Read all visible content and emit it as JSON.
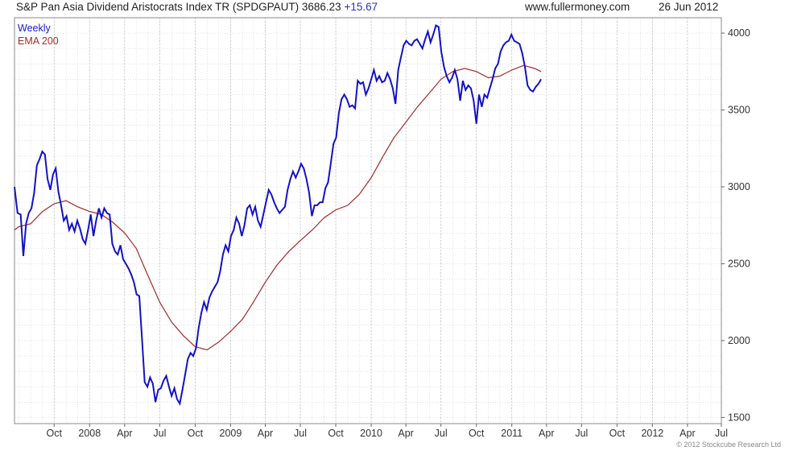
{
  "header": {
    "title": "S&P Pan Asia Dividend Aristocrats Index TR (SPDGPAUT) 3686.23",
    "change": "+15.67",
    "site": "www.fullermoney.com",
    "date": "26 Jun 2012"
  },
  "legend": {
    "weekly": "Weekly",
    "ema": "EMA 200"
  },
  "copyright": "© 2012 Stockcube Research Ltd",
  "colors": {
    "weekly": "#1212c8",
    "ema": "#a52a2a",
    "grid": "#c6c6c6",
    "frame": "#888888"
  },
  "chart_data": {
    "type": "line",
    "title": "S&P Pan Asia Dividend Aristocrats Index TR (SPDGPAUT) 3686.23",
    "x_tick_labels": [
      "Oct",
      "2008",
      "Apr",
      "Jul",
      "Oct",
      "2009",
      "Apr",
      "Jul",
      "Oct",
      "2010",
      "Apr",
      "Jul",
      "Oct",
      "2011",
      "Apr",
      "Jul",
      "Oct",
      "2012",
      "Apr",
      "Jul"
    ],
    "y_ticks": [
      1500,
      2000,
      2500,
      3000,
      3500,
      4000
    ],
    "ylim": [
      1460,
      4100
    ],
    "xlim": [
      "2007-06-20",
      "2012-06-28"
    ],
    "grid": true,
    "legend_position": "top-left",
    "series": [
      {
        "name": "Weekly",
        "points": [
          [
            "2007-06-20",
            3000
          ],
          [
            "2007-06-28",
            2830
          ],
          [
            "2007-07-06",
            2820
          ],
          [
            "2007-07-13",
            2550
          ],
          [
            "2007-07-20",
            2760
          ],
          [
            "2007-07-27",
            2830
          ],
          [
            "2007-08-03",
            2860
          ],
          [
            "2007-08-10",
            2960
          ],
          [
            "2007-08-17",
            3140
          ],
          [
            "2007-08-24",
            3180
          ],
          [
            "2007-08-31",
            3230
          ],
          [
            "2007-09-07",
            3210
          ],
          [
            "2007-09-14",
            3050
          ],
          [
            "2007-09-21",
            2980
          ],
          [
            "2007-09-28",
            3080
          ],
          [
            "2007-10-05",
            3120
          ],
          [
            "2007-10-12",
            2970
          ],
          [
            "2007-10-19",
            2880
          ],
          [
            "2007-10-26",
            2780
          ],
          [
            "2007-11-02",
            2810
          ],
          [
            "2007-11-09",
            2720
          ],
          [
            "2007-11-16",
            2760
          ],
          [
            "2007-11-23",
            2710
          ],
          [
            "2007-11-30",
            2780
          ],
          [
            "2007-12-07",
            2730
          ],
          [
            "2007-12-14",
            2660
          ],
          [
            "2007-12-21",
            2630
          ],
          [
            "2007-12-28",
            2720
          ],
          [
            "2008-01-04",
            2820
          ],
          [
            "2008-01-11",
            2680
          ],
          [
            "2008-01-18",
            2780
          ],
          [
            "2008-01-25",
            2860
          ],
          [
            "2008-02-01",
            2800
          ],
          [
            "2008-02-08",
            2860
          ],
          [
            "2008-02-15",
            2830
          ],
          [
            "2008-02-22",
            2820
          ],
          [
            "2008-02-29",
            2630
          ],
          [
            "2008-03-07",
            2580
          ],
          [
            "2008-03-14",
            2560
          ],
          [
            "2008-03-21",
            2620
          ],
          [
            "2008-03-28",
            2530
          ],
          [
            "2008-04-04",
            2500
          ],
          [
            "2008-04-11",
            2470
          ],
          [
            "2008-04-18",
            2430
          ],
          [
            "2008-04-25",
            2380
          ],
          [
            "2008-05-02",
            2300
          ],
          [
            "2008-05-09",
            2290
          ],
          [
            "2008-05-16",
            2010
          ],
          [
            "2008-05-23",
            1730
          ],
          [
            "2008-05-30",
            1700
          ],
          [
            "2008-06-06",
            1760
          ],
          [
            "2008-06-13",
            1720
          ],
          [
            "2008-06-20",
            1600
          ],
          [
            "2008-06-27",
            1680
          ],
          [
            "2008-07-04",
            1690
          ],
          [
            "2008-07-11",
            1740
          ],
          [
            "2008-07-18",
            1770
          ],
          [
            "2008-07-25",
            1700
          ],
          [
            "2008-08-01",
            1640
          ],
          [
            "2008-08-08",
            1690
          ],
          [
            "2008-08-15",
            1620
          ],
          [
            "2008-08-22",
            1590
          ],
          [
            "2008-08-29",
            1680
          ],
          [
            "2008-09-05",
            1780
          ],
          [
            "2008-09-12",
            1880
          ],
          [
            "2008-09-19",
            1920
          ],
          [
            "2008-09-26",
            1900
          ],
          [
            "2008-10-03",
            1950
          ],
          [
            "2008-10-10",
            2080
          ],
          [
            "2008-10-17",
            2180
          ],
          [
            "2008-10-24",
            2250
          ],
          [
            "2008-10-31",
            2200
          ],
          [
            "2008-11-07",
            2280
          ],
          [
            "2008-11-14",
            2320
          ],
          [
            "2008-11-21",
            2350
          ],
          [
            "2008-11-28",
            2380
          ],
          [
            "2008-12-05",
            2450
          ],
          [
            "2008-12-12",
            2560
          ],
          [
            "2008-12-19",
            2620
          ],
          [
            "2008-12-26",
            2580
          ],
          [
            "2009-01-02",
            2680
          ],
          [
            "2009-01-09",
            2720
          ],
          [
            "2009-01-16",
            2800
          ],
          [
            "2009-01-23",
            2760
          ],
          [
            "2009-01-30",
            2680
          ],
          [
            "2009-02-06",
            2750
          ],
          [
            "2009-02-13",
            2860
          ],
          [
            "2009-02-20",
            2880
          ],
          [
            "2009-02-27",
            2820
          ],
          [
            "2009-03-06",
            2870
          ],
          [
            "2009-03-13",
            2780
          ],
          [
            "2009-03-20",
            2740
          ],
          [
            "2009-03-27",
            2820
          ],
          [
            "2009-04-03",
            2900
          ],
          [
            "2009-04-10",
            2980
          ],
          [
            "2009-04-17",
            2950
          ],
          [
            "2009-04-24",
            2900
          ],
          [
            "2009-05-01",
            2860
          ],
          [
            "2009-05-08",
            2830
          ],
          [
            "2009-05-15",
            2850
          ],
          [
            "2009-05-22",
            2870
          ],
          [
            "2009-05-29",
            2980
          ],
          [
            "2009-06-05",
            3050
          ],
          [
            "2009-06-12",
            3100
          ],
          [
            "2009-06-19",
            3060
          ],
          [
            "2009-06-26",
            3100
          ],
          [
            "2009-07-03",
            3150
          ],
          [
            "2009-07-10",
            3120
          ],
          [
            "2009-07-17",
            3050
          ],
          [
            "2009-07-24",
            2960
          ],
          [
            "2009-07-31",
            2810
          ],
          [
            "2009-08-07",
            2880
          ],
          [
            "2009-08-14",
            2880
          ],
          [
            "2009-08-21",
            2900
          ],
          [
            "2009-08-28",
            2900
          ],
          [
            "2009-09-04",
            2990
          ],
          [
            "2009-09-11",
            3030
          ],
          [
            "2009-09-18",
            3150
          ],
          [
            "2009-09-25",
            3280
          ],
          [
            "2009-10-02",
            3320
          ],
          [
            "2009-10-09",
            3480
          ],
          [
            "2009-10-16",
            3570
          ],
          [
            "2009-10-23",
            3600
          ],
          [
            "2009-10-30",
            3570
          ],
          [
            "2009-11-06",
            3520
          ],
          [
            "2009-11-13",
            3530
          ],
          [
            "2009-11-20",
            3510
          ],
          [
            "2009-11-27",
            3690
          ],
          [
            "2009-12-04",
            3670
          ],
          [
            "2009-12-11",
            3680
          ],
          [
            "2009-12-18",
            3600
          ],
          [
            "2009-12-25",
            3640
          ],
          [
            "2010-01-01",
            3700
          ],
          [
            "2010-01-08",
            3760
          ],
          [
            "2010-01-15",
            3690
          ],
          [
            "2010-01-22",
            3720
          ],
          [
            "2010-01-29",
            3680
          ],
          [
            "2010-02-05",
            3690
          ],
          [
            "2010-02-12",
            3740
          ],
          [
            "2010-02-19",
            3700
          ],
          [
            "2010-02-26",
            3640
          ],
          [
            "2010-03-05",
            3540
          ],
          [
            "2010-03-12",
            3760
          ],
          [
            "2010-03-19",
            3840
          ],
          [
            "2010-03-26",
            3920
          ],
          [
            "2010-04-02",
            3950
          ],
          [
            "2010-04-09",
            3930
          ],
          [
            "2010-04-16",
            3920
          ],
          [
            "2010-04-23",
            3950
          ],
          [
            "2010-04-30",
            3960
          ],
          [
            "2010-05-07",
            3930
          ],
          [
            "2010-05-14",
            3900
          ],
          [
            "2010-05-21",
            3960
          ],
          [
            "2010-05-28",
            4010
          ],
          [
            "2010-06-04",
            3940
          ],
          [
            "2010-06-11",
            3990
          ],
          [
            "2010-06-18",
            4050
          ],
          [
            "2010-06-25",
            4040
          ],
          [
            "2010-07-02",
            3880
          ],
          [
            "2010-07-09",
            3780
          ],
          [
            "2010-07-16",
            3720
          ],
          [
            "2010-07-23",
            3680
          ],
          [
            "2010-07-30",
            3710
          ],
          [
            "2010-08-06",
            3760
          ],
          [
            "2010-08-13",
            3700
          ],
          [
            "2010-08-20",
            3560
          ],
          [
            "2010-08-27",
            3690
          ],
          [
            "2010-09-03",
            3630
          ],
          [
            "2010-09-10",
            3660
          ],
          [
            "2010-09-17",
            3640
          ],
          [
            "2010-09-24",
            3560
          ],
          [
            "2010-10-01",
            3410
          ],
          [
            "2010-10-08",
            3600
          ],
          [
            "2010-10-15",
            3520
          ],
          [
            "2010-10-22",
            3600
          ],
          [
            "2010-10-29",
            3580
          ],
          [
            "2010-11-05",
            3640
          ],
          [
            "2010-11-12",
            3700
          ],
          [
            "2010-11-19",
            3770
          ],
          [
            "2010-11-26",
            3800
          ],
          [
            "2010-12-03",
            3880
          ],
          [
            "2010-12-10",
            3920
          ],
          [
            "2010-12-17",
            3940
          ],
          [
            "2010-12-24",
            3950
          ],
          [
            "2010-12-31",
            3990
          ],
          [
            "2011-01-07",
            3950
          ],
          [
            "2011-01-14",
            3940
          ],
          [
            "2011-01-21",
            3930
          ],
          [
            "2011-01-28",
            3870
          ],
          [
            "2011-02-04",
            3780
          ],
          [
            "2011-02-11",
            3660
          ],
          [
            "2011-02-18",
            3630
          ],
          [
            "2011-02-25",
            3620
          ],
          [
            "2011-03-04",
            3650
          ],
          [
            "2011-03-11",
            3670
          ],
          [
            "2011-03-18",
            3700
          ]
        ]
      },
      {
        "name": "EMA 200",
        "points": [
          [
            "2007-06-20",
            2720
          ],
          [
            "2007-07-01",
            2740
          ],
          [
            "2007-08-01",
            2760
          ],
          [
            "2007-09-01",
            2840
          ],
          [
            "2007-10-01",
            2890
          ],
          [
            "2007-11-01",
            2910
          ],
          [
            "2007-12-01",
            2870
          ],
          [
            "2008-01-01",
            2840
          ],
          [
            "2008-02-01",
            2820
          ],
          [
            "2008-03-01",
            2770
          ],
          [
            "2008-04-01",
            2700
          ],
          [
            "2008-05-01",
            2600
          ],
          [
            "2008-06-01",
            2420
          ],
          [
            "2008-07-01",
            2250
          ],
          [
            "2008-08-01",
            2120
          ],
          [
            "2008-09-01",
            2030
          ],
          [
            "2008-10-01",
            1960
          ],
          [
            "2008-11-01",
            1940
          ],
          [
            "2008-12-01",
            1990
          ],
          [
            "2009-01-01",
            2060
          ],
          [
            "2009-02-01",
            2140
          ],
          [
            "2009-03-01",
            2250
          ],
          [
            "2009-04-01",
            2380
          ],
          [
            "2009-05-01",
            2490
          ],
          [
            "2009-06-01",
            2580
          ],
          [
            "2009-07-01",
            2650
          ],
          [
            "2009-08-01",
            2720
          ],
          [
            "2009-09-01",
            2800
          ],
          [
            "2009-10-01",
            2850
          ],
          [
            "2009-11-01",
            2880
          ],
          [
            "2009-12-01",
            2950
          ],
          [
            "2010-01-01",
            3060
          ],
          [
            "2010-02-01",
            3200
          ],
          [
            "2010-03-01",
            3320
          ],
          [
            "2010-04-01",
            3420
          ],
          [
            "2010-05-01",
            3520
          ],
          [
            "2010-06-01",
            3610
          ],
          [
            "2010-07-01",
            3700
          ],
          [
            "2010-08-01",
            3750
          ],
          [
            "2010-09-01",
            3770
          ],
          [
            "2010-10-01",
            3750
          ],
          [
            "2010-11-01",
            3710
          ],
          [
            "2010-12-01",
            3720
          ],
          [
            "2011-01-01",
            3760
          ],
          [
            "2011-02-01",
            3790
          ],
          [
            "2011-03-01",
            3770
          ],
          [
            "2011-03-18",
            3750
          ]
        ]
      }
    ]
  }
}
